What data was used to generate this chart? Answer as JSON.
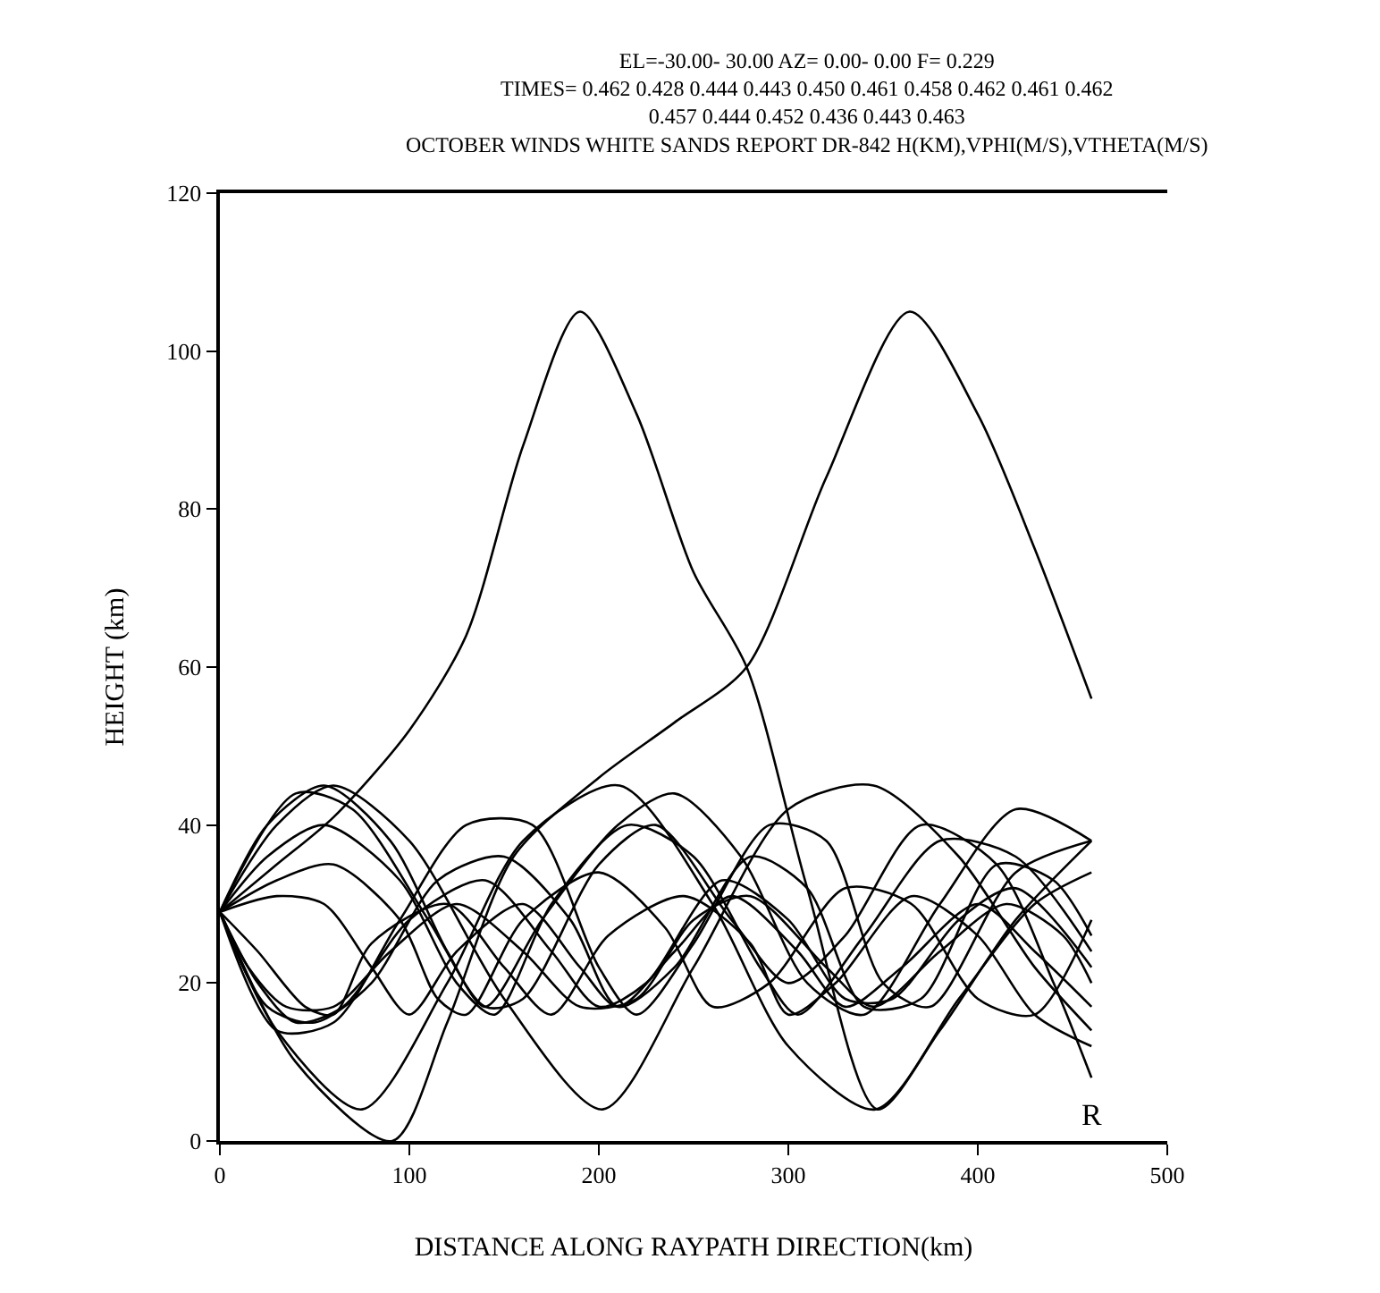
{
  "chart_data": {
    "type": "line",
    "title": "EL=-30.00- 30.00 AZ= 0.00- 0.00 F= 0.229",
    "subtitle": "TIMES= 0.462 0.428 0.444 0.443 0.450 0.461 0.458 0.462 0.461 0.462\n0.457 0.444 0.452 0.436 0.443 0.463",
    "annotations": [
      "OCTOBER WINDS WHITE SANDS REPORT DR-842 H(KM),VPHI(M/S),VTHETA(M/S)",
      "R"
    ],
    "xlabel": "DISTANCE ALONG RAYPATH DIRECTION(km)",
    "ylabel": "HEIGHT (km)",
    "xlim": [
      0,
      500
    ],
    "xticks": [
      0,
      100,
      200,
      300,
      400,
      500
    ],
    "ylim": [
      0,
      120
    ],
    "yticks": [
      0,
      20,
      40,
      60,
      80,
      100,
      120
    ],
    "marker": "none",
    "line_style": "solid",
    "series": [
      {
        "color": "#000000",
        "x": [
          0,
          30,
          60,
          100,
          130,
          160,
          190,
          220,
          250,
          278,
          310,
          347,
          380,
          420,
          460
        ],
        "values": [
          29,
          35,
          41,
          52,
          64,
          88,
          105,
          92,
          72,
          60,
          32,
          4,
          14,
          28,
          38
        ]
      },
      {
        "color": "#000000",
        "x": [
          0,
          40,
          91,
          120,
          155,
          200,
          240,
          278,
          320,
          364,
          400,
          430,
          460
        ],
        "values": [
          29,
          10,
          0,
          15,
          36,
          46,
          53,
          60,
          84,
          105,
          92,
          75,
          56
        ]
      },
      {
        "color": "#000000",
        "x": [
          0,
          30,
          75,
          120,
          160,
          211,
          260,
          300,
          346,
          390,
          430,
          460
        ],
        "values": [
          29,
          14,
          4,
          20,
          38,
          45,
          30,
          12,
          4,
          18,
          30,
          34
        ]
      },
      {
        "color": "#000000",
        "x": [
          0,
          30,
          60,
          100,
          150,
          202,
          250,
          300,
          345,
          390,
          430,
          460
        ],
        "values": [
          29,
          40,
          45,
          38,
          18,
          4,
          22,
          42,
          45,
          36,
          22,
          14
        ]
      },
      {
        "color": "#000000",
        "x": [
          0,
          25,
          55,
          90,
          120,
          140,
          170,
          210,
          240,
          275,
          310,
          340,
          380,
          420,
          460
        ],
        "values": [
          29,
          40,
          45,
          38,
          24,
          17,
          28,
          40,
          44,
          36,
          20,
          16,
          30,
          42,
          38
        ]
      },
      {
        "color": "#000000",
        "x": [
          0,
          25,
          55,
          95,
          125,
          145,
          175,
          215,
          250,
          285,
          305,
          340,
          380,
          420,
          460
        ],
        "values": [
          29,
          36,
          40,
          33,
          20,
          16,
          30,
          40,
          36,
          22,
          16,
          26,
          38,
          36,
          24
        ]
      },
      {
        "color": "#000000",
        "x": [
          0,
          30,
          60,
          95,
          115,
          130,
          160,
          200,
          235,
          260,
          290,
          330,
          365,
          400,
          430,
          460
        ],
        "values": [
          29,
          33,
          35,
          28,
          18,
          16,
          28,
          34,
          27,
          17,
          20,
          32,
          30,
          18,
          16,
          28
        ]
      },
      {
        "color": "#000000",
        "x": [
          0,
          30,
          55,
          80,
          100,
          125,
          160,
          190,
          210,
          240,
          270,
          305,
          330,
          360,
          400,
          430,
          460
        ],
        "values": [
          29,
          31,
          30,
          22,
          16,
          24,
          30,
          22,
          17,
          24,
          31,
          24,
          17,
          22,
          30,
          24,
          17
        ]
      },
      {
        "color": "#000000",
        "x": [
          0,
          15,
          35,
          60,
          90,
          125,
          160,
          190,
          220,
          250,
          280,
          320,
          345,
          380,
          415,
          445,
          460
        ],
        "values": [
          29,
          22,
          17,
          17,
          24,
          30,
          24,
          17,
          18,
          28,
          31,
          22,
          17,
          24,
          30,
          26,
          20
        ]
      },
      {
        "color": "#000000",
        "x": [
          0,
          20,
          40,
          65,
          100,
          140,
          175,
          200,
          225,
          265,
          300,
          330,
          355,
          390,
          420,
          460
        ],
        "values": [
          29,
          20,
          15,
          17,
          28,
          33,
          24,
          17,
          20,
          33,
          28,
          18,
          18,
          28,
          32,
          22
        ]
      },
      {
        "color": "#000000",
        "x": [
          0,
          25,
          50,
          80,
          115,
          150,
          185,
          210,
          240,
          280,
          310,
          340,
          370,
          410,
          440,
          460
        ],
        "values": [
          29,
          17,
          15,
          20,
          33,
          36,
          28,
          17,
          22,
          36,
          32,
          17,
          18,
          35,
          33,
          26
        ]
      },
      {
        "color": "#000000",
        "x": [
          0,
          30,
          60,
          95,
          130,
          165,
          200,
          220,
          250,
          290,
          320,
          350,
          375,
          420,
          460
        ],
        "values": [
          29,
          14,
          15,
          28,
          40,
          40,
          22,
          16,
          25,
          40,
          38,
          20,
          17,
          34,
          38
        ]
      },
      {
        "color": "#000000",
        "x": [
          0,
          20,
          45,
          60,
          80,
          120,
          150,
          175,
          205,
          245,
          280,
          300,
          325,
          365,
          400,
          430,
          460
        ],
        "values": [
          29,
          24,
          17,
          16,
          25,
          30,
          22,
          16,
          26,
          31,
          25,
          16,
          20,
          31,
          26,
          16,
          12
        ]
      },
      {
        "color": "#000000",
        "x": [
          0,
          40,
          70,
          110,
          140,
          160,
          200,
          230,
          270,
          300,
          330,
          370,
          410,
          440,
          460
        ],
        "values": [
          29,
          44,
          42,
          28,
          17,
          18,
          35,
          40,
          28,
          20,
          26,
          40,
          35,
          20,
          8
        ]
      }
    ]
  }
}
